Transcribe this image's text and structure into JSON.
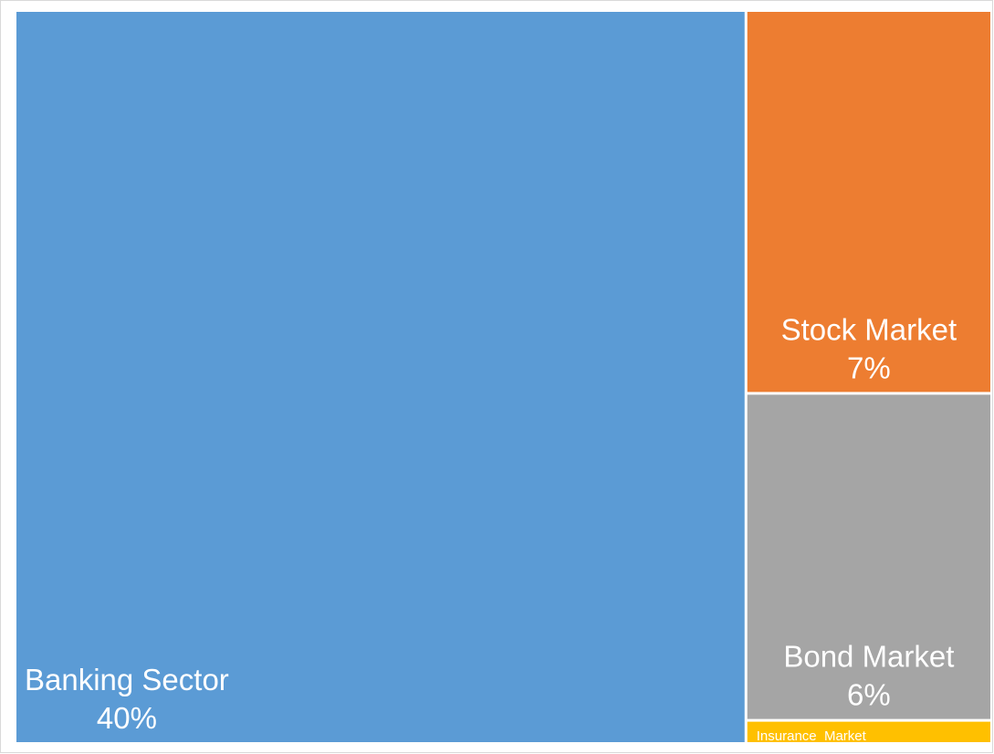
{
  "chart_data": {
    "type": "treemap",
    "title": "",
    "items": [
      {
        "label": "Banking Sector",
        "value_label": "40%",
        "value": 40,
        "color": "#5b9bd5"
      },
      {
        "label": "Stock Market",
        "value_label": "7%",
        "value": 7,
        "color": "#ed7d31"
      },
      {
        "label": "Bond Market",
        "value_label": "6%",
        "value": 6,
        "color": "#a5a5a5"
      },
      {
        "label": "Insurance  Market",
        "value_label": "",
        "value": 0.4,
        "color": "#ffc000"
      }
    ]
  }
}
